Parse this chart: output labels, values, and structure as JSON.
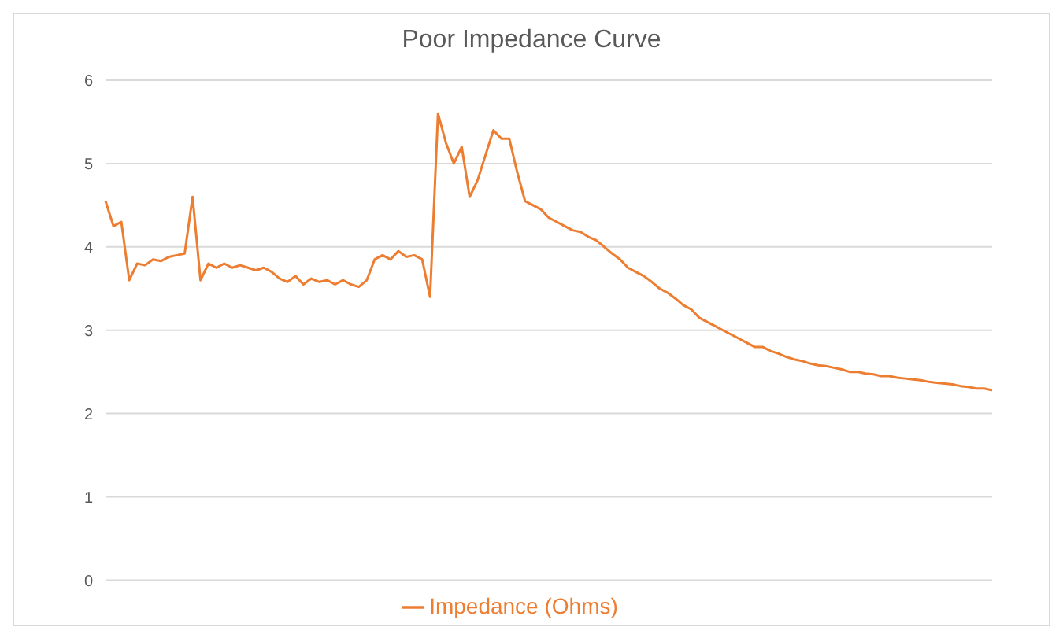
{
  "chart_data": {
    "type": "line",
    "title": "Poor Impedance Curve",
    "categories": [
      null,
      null,
      null,
      null,
      null,
      null,
      null,
      null,
      null,
      null,
      null,
      null,
      null,
      null,
      null,
      null,
      null,
      null,
      null,
      null,
      null,
      null,
      null,
      null,
      null,
      null,
      null,
      null,
      null,
      null,
      null,
      null,
      null,
      null,
      null,
      null,
      null,
      null,
      null,
      null,
      null,
      null,
      null,
      null,
      null,
      null,
      null,
      null,
      null,
      null,
      null,
      null,
      null,
      null,
      null,
      null,
      null,
      null,
      null,
      null,
      null,
      null,
      null,
      null,
      null,
      null,
      null,
      null,
      null,
      null,
      null,
      null,
      null,
      null,
      null,
      null,
      null,
      null,
      null,
      null,
      null,
      null,
      null,
      null,
      null,
      null,
      null,
      null,
      null,
      null,
      null,
      null,
      null,
      null,
      null,
      null,
      null,
      null,
      null,
      null,
      null,
      null,
      null,
      null,
      null,
      null,
      null,
      null,
      null,
      null,
      null,
      null,
      null
    ],
    "series": [
      {
        "name": "Impedance (Ohms)",
        "color": "#ed7d31",
        "values": [
          4.55,
          4.25,
          4.3,
          3.6,
          3.8,
          3.78,
          3.85,
          3.83,
          3.88,
          3.9,
          3.92,
          4.6,
          3.6,
          3.8,
          3.75,
          3.8,
          3.75,
          3.78,
          3.75,
          3.72,
          3.75,
          3.7,
          3.62,
          3.58,
          3.65,
          3.55,
          3.62,
          3.58,
          3.6,
          3.55,
          3.6,
          3.55,
          3.52,
          3.6,
          3.85,
          3.9,
          3.85,
          3.95,
          3.88,
          3.9,
          3.85,
          3.4,
          5.6,
          5.25,
          5.0,
          5.2,
          4.6,
          4.8,
          5.1,
          5.4,
          5.3,
          5.3,
          4.9,
          4.55,
          4.5,
          4.45,
          4.35,
          4.3,
          4.25,
          4.2,
          4.18,
          4.12,
          4.08,
          4.0,
          3.92,
          3.85,
          3.75,
          3.7,
          3.65,
          3.58,
          3.5,
          3.45,
          3.38,
          3.3,
          3.25,
          3.15,
          3.1,
          3.05,
          3.0,
          2.95,
          2.9,
          2.85,
          2.8,
          2.8,
          2.75,
          2.72,
          2.68,
          2.65,
          2.63,
          2.6,
          2.58,
          2.57,
          2.55,
          2.53,
          2.5,
          2.5,
          2.48,
          2.47,
          2.45,
          2.45,
          2.43,
          2.42,
          2.41,
          2.4,
          2.38,
          2.37,
          2.36,
          2.35,
          2.33,
          2.32,
          2.3,
          2.3,
          2.28
        ]
      }
    ],
    "ylim": [
      0,
      6
    ],
    "yticks": [
      0,
      1,
      2,
      3,
      4,
      5,
      6
    ],
    "grid": "y",
    "legend": "bottom",
    "marker": "none"
  }
}
